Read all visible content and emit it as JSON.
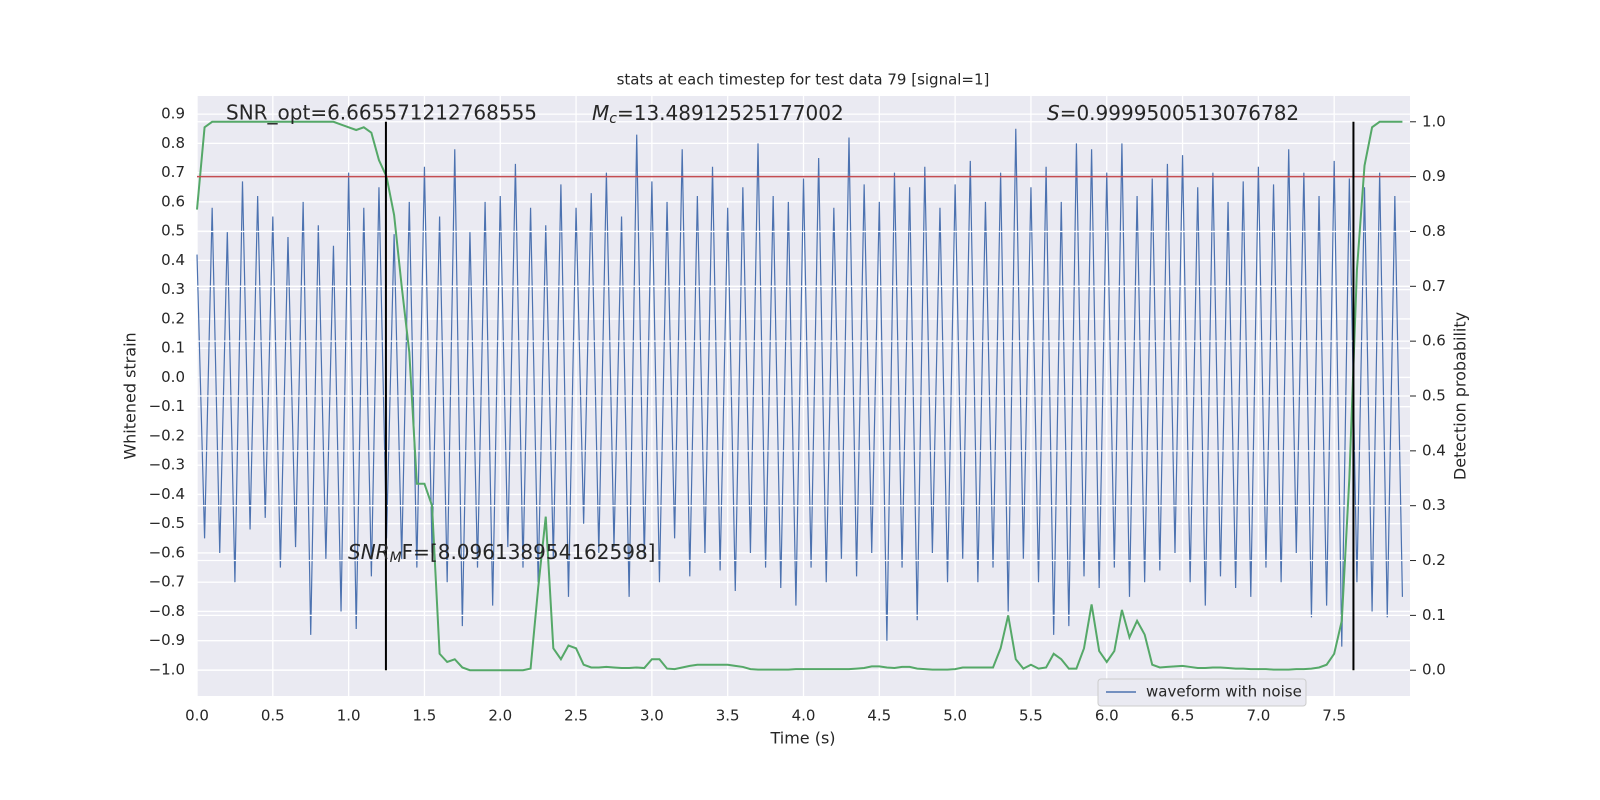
{
  "chart_data": {
    "type": "line",
    "title": "stats at each timestep for test data 79 [signal=1]",
    "xlabel": "Time (s)",
    "ylabel": "Whitened strain",
    "y2label": "Detection probability",
    "xlim": [
      0,
      8.0
    ],
    "ylim": [
      -1.089,
      0.962
    ],
    "y2lim": [
      -0.047,
      1.047
    ],
    "grid": true,
    "legend": "lower right",
    "xticks": [
      {
        "value": 0,
        "label": "0.0"
      },
      {
        "value": 0.5,
        "label": "0.5"
      },
      {
        "value": 1,
        "label": "1.0"
      },
      {
        "value": 1.5,
        "label": "1.5"
      },
      {
        "value": 2,
        "label": "2.0"
      },
      {
        "value": 2.5,
        "label": "2.5"
      },
      {
        "value": 3,
        "label": "3.0"
      },
      {
        "value": 3.5,
        "label": "3.5"
      },
      {
        "value": 4,
        "label": "4.0"
      },
      {
        "value": 4.5,
        "label": "4.5"
      },
      {
        "value": 5,
        "label": "5.0"
      },
      {
        "value": 5.5,
        "label": "5.5"
      },
      {
        "value": 6,
        "label": "6.0"
      },
      {
        "value": 6.5,
        "label": "6.5"
      },
      {
        "value": 7,
        "label": "7.0"
      },
      {
        "value": 7.5,
        "label": "7.5"
      }
    ],
    "yticks": [
      {
        "value": -1,
        "label": "−1.0"
      },
      {
        "value": -0.9,
        "label": "−0.9"
      },
      {
        "value": -0.8,
        "label": "−0.8"
      },
      {
        "value": -0.7,
        "label": "−0.7"
      },
      {
        "value": -0.6,
        "label": "−0.6"
      },
      {
        "value": -0.5,
        "label": "−0.5"
      },
      {
        "value": -0.4,
        "label": "−0.4"
      },
      {
        "value": -0.3,
        "label": "−0.3"
      },
      {
        "value": -0.2,
        "label": "−0.2"
      },
      {
        "value": -0.1,
        "label": "−0.1"
      },
      {
        "value": 0,
        "label": "0.0"
      },
      {
        "value": 0.1,
        "label": "0.1"
      },
      {
        "value": 0.2,
        "label": "0.2"
      },
      {
        "value": 0.3,
        "label": "0.3"
      },
      {
        "value": 0.4,
        "label": "0.4"
      },
      {
        "value": 0.5,
        "label": "0.5"
      },
      {
        "value": 0.6,
        "label": "0.6"
      },
      {
        "value": 0.7,
        "label": "0.7"
      },
      {
        "value": 0.8,
        "label": "0.8"
      },
      {
        "value": 0.9,
        "label": "0.9"
      }
    ],
    "y2ticks": [
      {
        "value": 0,
        "label": "0.0"
      },
      {
        "value": 0.1,
        "label": "0.1"
      },
      {
        "value": 0.2,
        "label": "0.2"
      },
      {
        "value": 0.3,
        "label": "0.3"
      },
      {
        "value": 0.4,
        "label": "0.4"
      },
      {
        "value": 0.5,
        "label": "0.5"
      },
      {
        "value": 0.6,
        "label": "0.6"
      },
      {
        "value": 0.7,
        "label": "0.7"
      },
      {
        "value": 0.8,
        "label": "0.8"
      },
      {
        "value": 0.9,
        "label": "0.9"
      },
      {
        "value": 1,
        "label": "1.0"
      }
    ],
    "x": [
      0,
      0.05,
      0.1,
      0.15,
      0.2,
      0.25,
      0.3,
      0.35,
      0.4,
      0.45,
      0.5,
      0.55,
      0.6,
      0.65,
      0.7,
      0.75,
      0.8,
      0.85,
      0.9,
      0.95,
      1,
      1.05,
      1.1,
      1.15,
      1.2,
      1.25,
      1.3,
      1.35,
      1.4,
      1.45,
      1.5,
      1.55,
      1.6,
      1.65,
      1.7,
      1.75,
      1.8,
      1.85,
      1.9,
      1.95,
      2,
      2.05,
      2.1,
      2.15,
      2.2,
      2.25,
      2.3,
      2.35,
      2.4,
      2.45,
      2.5,
      2.55,
      2.6,
      2.65,
      2.7,
      2.75,
      2.8,
      2.85,
      2.9,
      2.95,
      3,
      3.05,
      3.1,
      3.15,
      3.2,
      3.25,
      3.3,
      3.35,
      3.4,
      3.45,
      3.5,
      3.55,
      3.6,
      3.65,
      3.7,
      3.75,
      3.8,
      3.85,
      3.9,
      3.95,
      4,
      4.05,
      4.1,
      4.15,
      4.2,
      4.25,
      4.3,
      4.35,
      4.4,
      4.45,
      4.5,
      4.55,
      4.6,
      4.65,
      4.7,
      4.75,
      4.8,
      4.85,
      4.9,
      4.95,
      5,
      5.05,
      5.1,
      5.15,
      5.2,
      5.25,
      5.3,
      5.35,
      5.4,
      5.45,
      5.5,
      5.55,
      5.6,
      5.65,
      5.7,
      5.75,
      5.8,
      5.85,
      5.9,
      5.95,
      6,
      6.05,
      6.1,
      6.15,
      6.2,
      6.25,
      6.3,
      6.35,
      6.4,
      6.45,
      6.5,
      6.55,
      6.6,
      6.65,
      6.7,
      6.75,
      6.8,
      6.85,
      6.9,
      6.95,
      7,
      7.05,
      7.1,
      7.15,
      7.2,
      7.25,
      7.3,
      7.35,
      7.4,
      7.45,
      7.5,
      7.55,
      7.6,
      7.65,
      7.7,
      7.75,
      7.8,
      7.85,
      7.9,
      7.95
    ],
    "series": [
      {
        "name": "waveform with noise",
        "color": "#4c72b0",
        "axis": "y",
        "values": [
          0.42,
          -0.55,
          0.58,
          -0.6,
          0.5,
          -0.7,
          0.67,
          -0.52,
          0.62,
          -0.48,
          0.55,
          -0.65,
          0.48,
          -0.58,
          0.6,
          -0.88,
          0.52,
          -0.62,
          0.45,
          -0.8,
          0.7,
          -0.86,
          0.58,
          -0.68,
          0.65,
          -0.55,
          0.49,
          -0.62,
          0.6,
          -0.65,
          0.72,
          -0.6,
          0.55,
          -0.7,
          0.78,
          -0.85,
          0.5,
          -0.65,
          0.6,
          -0.78,
          0.62,
          -0.58,
          0.73,
          -0.65,
          0.58,
          -0.7,
          0.52,
          -0.62,
          0.66,
          -0.75,
          0.58,
          -0.5,
          0.63,
          -0.6,
          0.7,
          -0.58,
          0.55,
          -0.75,
          0.83,
          -0.62,
          0.67,
          -0.7,
          0.6,
          -0.55,
          0.78,
          -0.68,
          0.62,
          -0.6,
          0.72,
          -0.66,
          0.58,
          -0.73,
          0.65,
          -0.6,
          0.8,
          -0.65,
          0.62,
          -0.72,
          0.6,
          -0.78,
          0.68,
          -0.65,
          0.75,
          -0.7,
          0.58,
          -0.62,
          0.82,
          -0.68,
          0.66,
          -0.6,
          0.6,
          -0.9,
          0.7,
          -0.65,
          0.65,
          -0.83,
          0.72,
          -0.6,
          0.58,
          -0.7,
          0.66,
          -0.62,
          0.74,
          -0.7,
          0.6,
          -0.65,
          0.7,
          -0.8,
          0.85,
          -0.62,
          0.65,
          -0.7,
          0.72,
          -0.88,
          0.6,
          -0.85,
          0.8,
          -0.68,
          0.78,
          -0.72,
          0.7,
          -0.65,
          0.8,
          -0.75,
          0.62,
          -0.7,
          0.68,
          -0.66,
          0.73,
          -0.6,
          0.76,
          -0.7,
          0.65,
          -0.78,
          0.7,
          -0.68,
          0.6,
          -0.72,
          0.67,
          -0.75,
          0.72,
          -0.65,
          0.66,
          -0.7,
          0.78,
          -0.6,
          0.7,
          -0.82,
          0.62,
          -0.78,
          0.74,
          -0.92,
          0.68,
          -0.7,
          0.65,
          -0.8,
          0.7,
          -0.82,
          0.62,
          -0.75
        ]
      },
      {
        "color": "#55a868",
        "axis": "y2",
        "values": [
          0.84,
          0.99,
          1.0,
          1.0,
          1.0,
          1.0,
          1.0,
          1.0,
          1.0,
          1.0,
          1.0,
          1.0,
          1.0,
          1.0,
          1.0,
          1.0,
          1.0,
          1.0,
          1.0,
          0.995,
          0.99,
          0.985,
          0.99,
          0.98,
          0.93,
          0.9,
          0.83,
          0.7,
          0.58,
          0.34,
          0.34,
          0.3,
          0.03,
          0.015,
          0.02,
          0.005,
          0.0,
          0.0,
          0.0,
          0.0,
          0.0,
          0.0,
          0.0,
          0.0,
          0.003,
          0.15,
          0.28,
          0.04,
          0.02,
          0.045,
          0.04,
          0.01,
          0.005,
          0.005,
          0.006,
          0.005,
          0.004,
          0.004,
          0.005,
          0.004,
          0.02,
          0.02,
          0.003,
          0.002,
          0.005,
          0.008,
          0.01,
          0.01,
          0.01,
          0.01,
          0.01,
          0.008,
          0.006,
          0.002,
          0.001,
          0.001,
          0.001,
          0.001,
          0.001,
          0.002,
          0.002,
          0.002,
          0.002,
          0.002,
          0.002,
          0.002,
          0.002,
          0.003,
          0.004,
          0.007,
          0.007,
          0.005,
          0.004,
          0.006,
          0.006,
          0.003,
          0.002,
          0.001,
          0.001,
          0.001,
          0.002,
          0.005,
          0.005,
          0.005,
          0.005,
          0.005,
          0.04,
          0.1,
          0.02,
          0.003,
          0.01,
          0.003,
          0.005,
          0.03,
          0.02,
          0.003,
          0.003,
          0.04,
          0.12,
          0.035,
          0.015,
          0.035,
          0.11,
          0.06,
          0.09,
          0.065,
          0.01,
          0.005,
          0.006,
          0.007,
          0.008,
          0.006,
          0.004,
          0.004,
          0.005,
          0.005,
          0.004,
          0.003,
          0.003,
          0.002,
          0.002,
          0.002,
          0.001,
          0.001,
          0.001,
          0.002,
          0.002,
          0.003,
          0.005,
          0.01,
          0.03,
          0.09,
          0.35,
          0.73,
          0.92,
          0.99,
          1.0,
          1.0,
          1.0,
          1.0
        ]
      }
    ],
    "threshold": {
      "axis": "y2",
      "value": 0.9,
      "color": "#c44e52"
    },
    "markers": {
      "color": "#000000",
      "x": [
        1.246,
        7.627
      ],
      "y2": [
        0,
        1
      ]
    },
    "annotations": [
      {
        "text": "SNR_opt=6.665571212768555"
      },
      {
        "symbol": "M",
        "subscript": "c",
        "text": "=13.48912525177002"
      },
      {
        "symbol": "S",
        "text": "=0.9999500513076782"
      },
      {
        "symbol": "SNR",
        "subscript": "M",
        "text": "F=[8.096138954162598]"
      }
    ]
  }
}
